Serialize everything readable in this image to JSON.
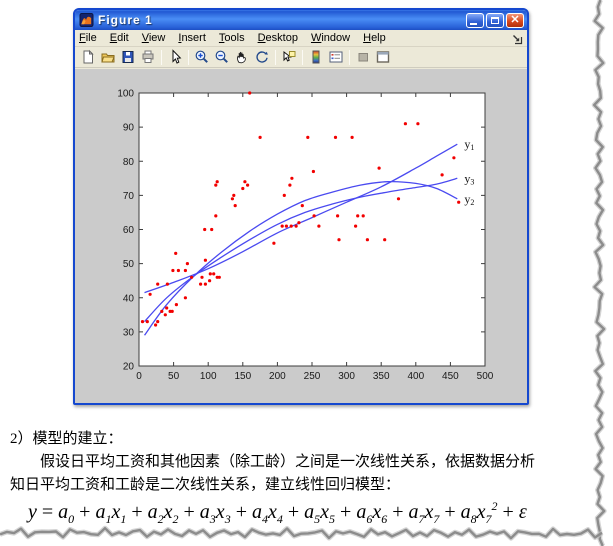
{
  "window": {
    "title": "Figure 1",
    "controls": [
      {
        "name": "minimize-button"
      },
      {
        "name": "maximize-button"
      },
      {
        "name": "close-button"
      }
    ],
    "menu": [
      "File",
      "Edit",
      "View",
      "Insert",
      "Tools",
      "Desktop",
      "Window",
      "Help"
    ],
    "toolbar": [
      {
        "name": "new-document",
        "sep_after": false
      },
      {
        "name": "open-file",
        "sep_after": false
      },
      {
        "name": "save-figure",
        "sep_after": false
      },
      {
        "name": "print-figure",
        "sep_after": true
      },
      {
        "name": "edit-plot",
        "sep_after": true
      },
      {
        "name": "zoom-in",
        "sep_after": false
      },
      {
        "name": "zoom-out",
        "sep_after": false
      },
      {
        "name": "pan",
        "sep_after": false
      },
      {
        "name": "rotate-3d",
        "sep_after": true
      },
      {
        "name": "data-cursor",
        "sep_after": true
      },
      {
        "name": "insert-colorbar",
        "sep_after": false
      },
      {
        "name": "insert-legend",
        "sep_after": true
      },
      {
        "name": "hide-plot-tools",
        "sep_after": false
      },
      {
        "name": "show-plot-tools",
        "sep_after": false
      }
    ]
  },
  "chart_data": {
    "type": "scatter",
    "title": "",
    "xlabel": "",
    "ylabel": "",
    "xlim": [
      0,
      500
    ],
    "ylim": [
      20,
      100
    ],
    "xticks": [
      0,
      50,
      100,
      150,
      200,
      250,
      300,
      350,
      400,
      450,
      500
    ],
    "yticks": [
      20,
      30,
      40,
      50,
      60,
      70,
      80,
      90,
      100
    ],
    "grid": false,
    "box": true,
    "scatter": {
      "name": "data-points",
      "marker": "dot",
      "color": "#f20000",
      "points": [
        [
          5,
          33
        ],
        [
          12,
          33
        ],
        [
          24,
          32
        ],
        [
          27,
          33
        ],
        [
          16,
          41
        ],
        [
          27,
          44
        ],
        [
          33,
          36
        ],
        [
          38,
          35
        ],
        [
          40,
          37
        ],
        [
          45,
          36
        ],
        [
          48,
          36
        ],
        [
          41,
          44
        ],
        [
          54,
          38
        ],
        [
          53,
          53
        ],
        [
          49,
          48
        ],
        [
          57,
          48
        ],
        [
          67,
          48
        ],
        [
          67,
          40
        ],
        [
          70,
          50
        ],
        [
          76,
          46
        ],
        [
          89,
          44
        ],
        [
          91,
          46
        ],
        [
          96,
          44
        ],
        [
          96,
          51
        ],
        [
          102,
          45
        ],
        [
          103,
          47
        ],
        [
          108,
          47
        ],
        [
          113,
          46
        ],
        [
          116,
          46
        ],
        [
          95,
          60
        ],
        [
          105,
          60
        ],
        [
          111,
          64
        ],
        [
          111,
          73
        ],
        [
          113,
          74
        ],
        [
          135,
          69
        ],
        [
          139,
          67
        ],
        [
          137,
          70
        ],
        [
          150,
          72
        ],
        [
          153,
          74
        ],
        [
          157,
          73
        ],
        [
          160,
          100
        ],
        [
          175,
          87
        ],
        [
          195,
          56
        ],
        [
          207,
          61
        ],
        [
          210,
          70
        ],
        [
          213,
          61
        ],
        [
          220,
          61
        ],
        [
          218,
          73
        ],
        [
          221,
          75
        ],
        [
          227,
          61
        ],
        [
          231,
          62
        ],
        [
          236,
          67
        ],
        [
          244,
          87
        ],
        [
          252,
          77
        ],
        [
          253,
          64
        ],
        [
          260,
          61
        ],
        [
          284,
          87
        ],
        [
          287,
          64
        ],
        [
          289,
          57
        ],
        [
          308,
          87
        ],
        [
          313,
          61
        ],
        [
          316,
          64
        ],
        [
          324,
          64
        ],
        [
          330,
          57
        ],
        [
          347,
          78
        ],
        [
          355,
          57
        ],
        [
          375,
          69
        ],
        [
          385,
          91
        ],
        [
          403,
          91
        ],
        [
          438,
          76
        ],
        [
          455,
          81
        ],
        [
          462,
          68
        ]
      ]
    },
    "series": [
      {
        "name": "y1",
        "label_main": "y",
        "label_sub": "1",
        "color": "#4a4af0",
        "points": [
          [
            8,
            41.5
          ],
          [
            50,
            44.5
          ],
          [
            100,
            48.5
          ],
          [
            150,
            53.5
          ],
          [
            200,
            59
          ],
          [
            250,
            63.5
          ],
          [
            300,
            68
          ],
          [
            350,
            72.5
          ],
          [
            400,
            78
          ],
          [
            430,
            81.5
          ],
          [
            460,
            85
          ]
        ]
      },
      {
        "name": "y2",
        "label_main": "y",
        "label_sub": "2",
        "color": "#4a4af0",
        "points": [
          [
            8,
            29
          ],
          [
            40,
            38
          ],
          [
            80,
            46.5
          ],
          [
            120,
            53.5
          ],
          [
            160,
            59.5
          ],
          [
            200,
            64.5
          ],
          [
            240,
            68.5
          ],
          [
            280,
            71
          ],
          [
            320,
            73
          ],
          [
            360,
            74
          ],
          [
            400,
            73.5
          ],
          [
            430,
            72
          ],
          [
            460,
            69
          ]
        ]
      },
      {
        "name": "y3",
        "label_main": "y",
        "label_sub": "3",
        "color": "#4a4af0",
        "points": [
          [
            8,
            33
          ],
          [
            40,
            40
          ],
          [
            80,
            46.5
          ],
          [
            120,
            52
          ],
          [
            160,
            57
          ],
          [
            200,
            61.5
          ],
          [
            240,
            65
          ],
          [
            280,
            67.5
          ],
          [
            320,
            69.5
          ],
          [
            360,
            71
          ],
          [
            400,
            72.3
          ],
          [
            430,
            73.3
          ],
          [
            460,
            75
          ]
        ]
      }
    ],
    "legend_position": "curve-end-labels"
  },
  "document": {
    "heading": "2）模型的建立：",
    "line1": "假设日平均工资和其他因素（除工龄）之间是一次线性关系，依据数据分析",
    "line2": "知日平均工资和工龄是二次线性关系，建立线性回归模型：",
    "formula_plain": "y = a0 + a1x1 + a2x2 + a3x3 + a4x4 + a5x5 + a6x6 + a7x7 + a8x7^2 + ε",
    "formula_terms": [
      {
        "t": "y"
      },
      {
        "t": "=",
        "op": 1
      },
      {
        "t": "a",
        "sub": "0"
      },
      {
        "t": "+",
        "op": 1
      },
      {
        "t": "a",
        "sub": "1"
      },
      {
        "t": "x",
        "sub": "1"
      },
      {
        "t": "+",
        "op": 1
      },
      {
        "t": "a",
        "sub": "2"
      },
      {
        "t": "x",
        "sub": "2"
      },
      {
        "t": "+",
        "op": 1
      },
      {
        "t": "a",
        "sub": "3"
      },
      {
        "t": "x",
        "sub": "3"
      },
      {
        "t": "+",
        "op": 1
      },
      {
        "t": "a",
        "sub": "4"
      },
      {
        "t": "x",
        "sub": "4"
      },
      {
        "t": "+",
        "op": 1
      },
      {
        "t": "a",
        "sub": "5"
      },
      {
        "t": "x",
        "sub": "5"
      },
      {
        "t": "+",
        "op": 1
      },
      {
        "t": "a",
        "sub": "6"
      },
      {
        "t": "x",
        "sub": "6"
      },
      {
        "t": "+",
        "op": 1
      },
      {
        "t": "a",
        "sub": "7"
      },
      {
        "t": "x",
        "sub": "7"
      },
      {
        "t": "+",
        "op": 1
      },
      {
        "t": "a",
        "sub": "8"
      },
      {
        "t": "x",
        "sub": "7",
        "sup": "2"
      },
      {
        "t": "+",
        "op": 1
      },
      {
        "t": "ε"
      }
    ]
  },
  "colors": {
    "titlebar_blue": "#2159d3",
    "window_border": "#1548cf",
    "chrome_bg": "#ece9d8",
    "figure_canvas_gray": "#cbcbcb",
    "plot_bg": "#ffffff",
    "axes_line": "#3c3c3c",
    "scatter_red": "#f20000",
    "curve_blue": "#4a4af0",
    "close_red": "#d94a1e"
  }
}
